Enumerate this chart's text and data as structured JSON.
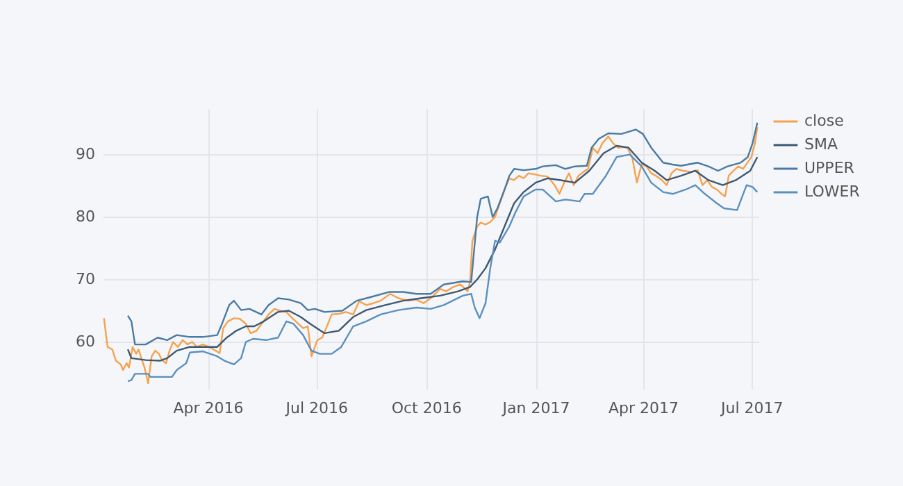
{
  "chart_data": {
    "type": "line",
    "legend": "top right",
    "grid": true,
    "line_style": "solid",
    "marker": "none",
    "xlim": [
      "2016-01-04",
      "2017-07-07"
    ],
    "ylim": [
      52.4,
      97.3
    ],
    "yticks": [
      60,
      70,
      80,
      90
    ],
    "xticks": [
      {
        "value": "2016-04-01",
        "label": "Apr 2016"
      },
      {
        "value": "2016-07-01",
        "label": "Jul 2016"
      },
      {
        "value": "2016-10-01",
        "label": "Oct 2016"
      },
      {
        "value": "2017-01-01",
        "label": "Jan 2017"
      },
      {
        "value": "2017-04-01",
        "label": "Apr 2017"
      },
      {
        "value": "2017-07-01",
        "label": "Jul 2017"
      }
    ],
    "series": [
      {
        "name": "close",
        "color": "#f5a24e",
        "x": [
          "2016-01-05",
          "2016-01-08",
          "2016-01-12",
          "2016-01-15",
          "2016-01-19",
          "2016-01-21",
          "2016-01-24",
          "2016-01-26",
          "2016-01-29",
          "2016-02-01",
          "2016-02-03",
          "2016-02-06",
          "2016-02-08",
          "2016-02-11",
          "2016-02-14",
          "2016-02-17",
          "2016-02-20",
          "2016-02-23",
          "2016-02-26",
          "2016-02-29",
          "2016-03-03",
          "2016-03-07",
          "2016-03-11",
          "2016-03-15",
          "2016-03-19",
          "2016-03-23",
          "2016-03-28",
          "2016-04-02",
          "2016-04-06",
          "2016-04-11",
          "2016-04-14",
          "2016-04-18",
          "2016-04-23",
          "2016-04-28",
          "2016-05-03",
          "2016-05-07",
          "2016-05-12",
          "2016-05-17",
          "2016-05-22",
          "2016-05-27",
          "2016-06-01",
          "2016-06-06",
          "2016-06-11",
          "2016-06-16",
          "2016-06-20",
          "2016-06-24",
          "2016-06-27",
          "2016-07-02",
          "2016-07-06",
          "2016-07-10",
          "2016-07-14",
          "2016-07-20",
          "2016-07-26",
          "2016-08-01",
          "2016-08-06",
          "2016-08-12",
          "2016-08-18",
          "2016-08-24",
          "2016-09-01",
          "2016-09-08",
          "2016-09-16",
          "2016-09-23",
          "2016-09-29",
          "2016-10-05",
          "2016-10-13",
          "2016-10-18",
          "2016-10-24",
          "2016-10-30",
          "2016-11-05",
          "2016-11-07",
          "2016-11-09",
          "2016-11-13",
          "2016-11-16",
          "2016-11-20",
          "2016-11-24",
          "2016-11-28",
          "2016-12-02",
          "2016-12-06",
          "2016-12-10",
          "2016-12-14",
          "2016-12-18",
          "2016-12-22",
          "2016-12-26",
          "2017-01-01",
          "2017-01-05",
          "2017-01-11",
          "2017-01-17",
          "2017-01-21",
          "2017-01-25",
          "2017-01-29",
          "2017-02-02",
          "2017-02-06",
          "2017-02-10",
          "2017-02-14",
          "2017-02-18",
          "2017-02-22",
          "2017-02-26",
          "2017-03-03",
          "2017-03-07",
          "2017-03-11",
          "2017-03-15",
          "2017-03-19",
          "2017-03-23",
          "2017-03-27",
          "2017-03-31",
          "2017-04-04",
          "2017-04-08",
          "2017-04-12",
          "2017-04-17",
          "2017-04-21",
          "2017-04-25",
          "2017-04-29",
          "2017-05-05",
          "2017-05-11",
          "2017-05-17",
          "2017-05-21",
          "2017-05-25",
          "2017-05-29",
          "2017-06-02",
          "2017-06-06",
          "2017-06-09",
          "2017-06-12",
          "2017-06-16",
          "2017-06-20",
          "2017-06-24",
          "2017-06-27",
          "2017-07-01",
          "2017-07-04",
          "2017-07-06"
        ],
        "values": [
          63.7,
          59.1,
          58.7,
          56.9,
          56.3,
          55.4,
          56.5,
          55.8,
          59.1,
          58,
          58.7,
          56.9,
          55.8,
          53.3,
          57.6,
          58.5,
          58,
          56.9,
          56.5,
          58.5,
          59.9,
          59.1,
          60.2,
          59.5,
          59.9,
          59.1,
          59.5,
          59.1,
          58.7,
          58.1,
          62.1,
          63.2,
          63.7,
          63.6,
          62.8,
          61.3,
          61.7,
          63,
          64.3,
          65.2,
          64.9,
          64.7,
          63.7,
          62.8,
          62.1,
          62.4,
          57.6,
          60.2,
          60.6,
          62.4,
          64.3,
          64.4,
          64.7,
          64.3,
          66.4,
          65.8,
          66.1,
          66.5,
          67.6,
          66.9,
          66.5,
          66.7,
          66.1,
          66.9,
          68.4,
          68,
          68.7,
          69.1,
          68,
          69.5,
          76.1,
          78.4,
          79,
          78.7,
          79.1,
          79.9,
          82.1,
          84.3,
          86.1,
          85.8,
          86.5,
          86.1,
          86.9,
          86.7,
          86.5,
          86.4,
          85,
          83.6,
          85.4,
          86.9,
          85,
          86.5,
          87.1,
          87.6,
          91,
          90.1,
          91.7,
          92.8,
          91.7,
          91,
          91.1,
          91,
          89.5,
          85.4,
          88.4,
          88,
          86.9,
          86.5,
          85.8,
          85,
          86.9,
          87.6,
          87.3,
          87.1,
          87.4,
          85,
          85.8,
          84.7,
          84.3,
          83.6,
          83.2,
          86.5,
          87.3,
          88,
          87.6,
          88.4,
          89.5,
          91.7,
          94.3
        ]
      },
      {
        "name": "SMA",
        "color": "#3d5873",
        "x": [
          "2016-01-25",
          "2016-01-28",
          "2016-02-09",
          "2016-02-21",
          "2016-02-27",
          "2016-03-06",
          "2016-03-17",
          "2016-03-28",
          "2016-04-09",
          "2016-04-17",
          "2016-04-25",
          "2016-05-03",
          "2016-05-10",
          "2016-05-18",
          "2016-05-30",
          "2016-06-08",
          "2016-06-18",
          "2016-06-26",
          "2016-07-08",
          "2016-07-20",
          "2016-08-01",
          "2016-08-12",
          "2016-08-28",
          "2016-09-12",
          "2016-09-27",
          "2016-10-13",
          "2016-10-28",
          "2016-11-07",
          "2016-11-13",
          "2016-11-20",
          "2016-11-28",
          "2016-12-06",
          "2016-12-14",
          "2016-12-22",
          "2017-01-01",
          "2017-01-11",
          "2017-01-22",
          "2017-02-03",
          "2017-02-15",
          "2017-02-27",
          "2017-03-10",
          "2017-03-20",
          "2017-03-31",
          "2017-04-11",
          "2017-04-21",
          "2017-05-03",
          "2017-05-15",
          "2017-05-26",
          "2017-06-07",
          "2017-06-18",
          "2017-06-30",
          "2017-07-06"
        ],
        "values": [
          58.7,
          57.3,
          57,
          56.9,
          57.3,
          58.5,
          59.1,
          59.1,
          59.1,
          60.6,
          61.7,
          62.4,
          62.4,
          63.2,
          64.7,
          64.9,
          63.9,
          62.8,
          61.3,
          61.7,
          63.9,
          65,
          65.8,
          66.5,
          66.9,
          67.3,
          68,
          68.7,
          69.9,
          71.7,
          74.7,
          78.4,
          82.1,
          83.9,
          85.4,
          86.1,
          85.8,
          85.4,
          87.3,
          90.1,
          91.3,
          91,
          88.6,
          87.3,
          85.8,
          86.5,
          87.3,
          85.8,
          85,
          85.8,
          87.3,
          89.5
        ]
      },
      {
        "name": "UPPER",
        "color": "#4a7aa3",
        "x": [
          "2016-01-25",
          "2016-01-28",
          "2016-01-31",
          "2016-02-09",
          "2016-02-19",
          "2016-02-27",
          "2016-03-06",
          "2016-03-17",
          "2016-03-28",
          "2016-04-09",
          "2016-04-13",
          "2016-04-19",
          "2016-04-23",
          "2016-04-29",
          "2016-05-06",
          "2016-05-16",
          "2016-05-22",
          "2016-05-30",
          "2016-06-08",
          "2016-06-18",
          "2016-06-24",
          "2016-06-30",
          "2016-07-08",
          "2016-07-23",
          "2016-08-04",
          "2016-08-16",
          "2016-08-31",
          "2016-09-12",
          "2016-09-23",
          "2016-10-05",
          "2016-10-16",
          "2016-11-01",
          "2016-11-08",
          "2016-11-13",
          "2016-11-16",
          "2016-11-22",
          "2016-11-26",
          "2016-11-30",
          "2016-12-06",
          "2016-12-10",
          "2016-12-14",
          "2016-12-22",
          "2017-01-01",
          "2017-01-07",
          "2017-01-18",
          "2017-01-26",
          "2017-02-03",
          "2017-02-13",
          "2017-02-17",
          "2017-02-23",
          "2017-03-03",
          "2017-03-14",
          "2017-03-26",
          "2017-04-01",
          "2017-04-08",
          "2017-04-18",
          "2017-04-26",
          "2017-05-03",
          "2017-05-17",
          "2017-05-26",
          "2017-06-03",
          "2017-06-11",
          "2017-06-22",
          "2017-06-28",
          "2017-07-02",
          "2017-07-06"
        ],
        "values": [
          64.1,
          63.2,
          59.5,
          59.5,
          60.6,
          60.2,
          61,
          60.7,
          60.7,
          61,
          62.8,
          65.8,
          66.5,
          65,
          65.2,
          64.3,
          65.8,
          66.9,
          66.7,
          66.1,
          65,
          65.2,
          64.7,
          64.9,
          66.5,
          67.1,
          67.9,
          67.9,
          67.6,
          67.6,
          69.1,
          69.6,
          69.5,
          79.9,
          82.8,
          83.2,
          79.9,
          81.3,
          84.3,
          86.5,
          87.6,
          87.4,
          87.6,
          88,
          88.2,
          87.6,
          88,
          88.1,
          91,
          92.4,
          93.3,
          93.2,
          93.9,
          93.2,
          91,
          88.6,
          88.3,
          88.1,
          88.6,
          88,
          87.3,
          88,
          88.6,
          89.5,
          91.7,
          95
        ]
      },
      {
        "name": "LOWER",
        "color": "#5b8fbf",
        "x": [
          "2016-01-25",
          "2016-01-28",
          "2016-01-31",
          "2016-02-11",
          "2016-02-13",
          "2016-03-02",
          "2016-03-06",
          "2016-03-14",
          "2016-03-17",
          "2016-03-28",
          "2016-04-09",
          "2016-04-15",
          "2016-04-23",
          "2016-04-29",
          "2016-05-03",
          "2016-05-09",
          "2016-05-20",
          "2016-05-30",
          "2016-06-06",
          "2016-06-12",
          "2016-06-20",
          "2016-06-27",
          "2016-07-04",
          "2016-07-14",
          "2016-07-22",
          "2016-08-01",
          "2016-08-12",
          "2016-08-24",
          "2016-09-08",
          "2016-09-23",
          "2016-10-05",
          "2016-10-16",
          "2016-11-01",
          "2016-11-08",
          "2016-11-11",
          "2016-11-15",
          "2016-11-20",
          "2016-11-24",
          "2016-11-28",
          "2016-12-02",
          "2016-12-10",
          "2016-12-15",
          "2016-12-22",
          "2017-01-01",
          "2017-01-07",
          "2017-01-18",
          "2017-01-26",
          "2017-02-07",
          "2017-02-11",
          "2017-02-18",
          "2017-03-01",
          "2017-03-10",
          "2017-03-21",
          "2017-03-31",
          "2017-04-08",
          "2017-04-18",
          "2017-04-26",
          "2017-05-07",
          "2017-05-15",
          "2017-05-23",
          "2017-06-02",
          "2017-06-08",
          "2017-06-19",
          "2017-06-27",
          "2017-07-02",
          "2017-07-06"
        ],
        "values": [
          53.6,
          53.8,
          54.8,
          54.8,
          54.3,
          54.3,
          55.4,
          56.5,
          58.2,
          58.4,
          57.6,
          56.9,
          56.3,
          57.3,
          59.9,
          60.4,
          60.2,
          60.6,
          63.2,
          62.8,
          61,
          58.5,
          58,
          58,
          59.1,
          62.4,
          63.2,
          64.3,
          65,
          65.4,
          65.2,
          65.8,
          67.3,
          67.6,
          65.4,
          63.7,
          66.1,
          71.7,
          76.1,
          75.8,
          78.4,
          80.6,
          83.2,
          84.3,
          84.3,
          82.4,
          82.7,
          82.4,
          83.6,
          83.6,
          86.5,
          89.5,
          89.9,
          88,
          85.4,
          83.9,
          83.6,
          84.3,
          85,
          83.6,
          82.1,
          81.3,
          81,
          85,
          84.7,
          83.9
        ]
      }
    ]
  }
}
